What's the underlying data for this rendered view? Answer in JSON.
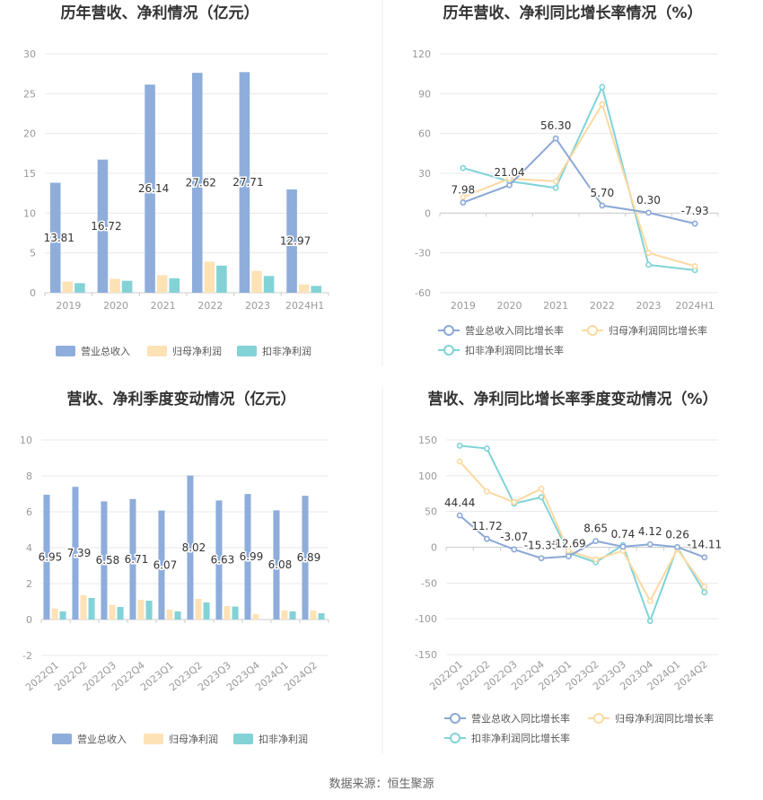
{
  "colors": {
    "revenue": "#8EADDB",
    "parent_profit": "#FDE2B6",
    "nonrecurring_profit": "#82D2D6",
    "grid": "#E8E8E8",
    "axis_text": "#999999",
    "label_text": "#333333"
  },
  "source": "数据来源：恒生聚源",
  "chart_data": [
    {
      "type": "bar",
      "title": "历年营收、净利情况（亿元）",
      "categories": [
        "2019",
        "2020",
        "2021",
        "2022",
        "2023",
        "2024H1"
      ],
      "series": [
        {
          "name": "营业总收入",
          "values": [
            13.81,
            16.72,
            26.14,
            27.62,
            27.71,
            12.97
          ],
          "labels": [
            "13.81",
            "16.72",
            "26.14",
            "27.62",
            "27.71",
            "12.97"
          ]
        },
        {
          "name": "归母净利润",
          "values": [
            1.4,
            1.75,
            2.2,
            3.9,
            2.75,
            1.05
          ]
        },
        {
          "name": "扣非净利润",
          "values": [
            1.2,
            1.5,
            1.8,
            3.4,
            2.1,
            0.85
          ]
        }
      ],
      "ylim": [
        0,
        30
      ],
      "yticks": [
        "0",
        "5",
        "10",
        "15",
        "20",
        "25",
        "30"
      ],
      "legend": "bottom"
    },
    {
      "type": "line",
      "title": "历年营收、净利同比增长率情况（%）",
      "categories": [
        "2019",
        "2020",
        "2021",
        "2022",
        "2023",
        "2024H1"
      ],
      "series": [
        {
          "name": "营业总收入同比增长率",
          "values": [
            7.98,
            21.04,
            56.3,
            5.7,
            0.3,
            -7.93
          ],
          "labels": [
            "7.98",
            "21.04",
            "56.30",
            "5.70",
            "0.30",
            "-7.93"
          ]
        },
        {
          "name": "归母净利润同比增长率",
          "values": [
            12,
            26,
            24,
            82,
            -30,
            -40
          ]
        },
        {
          "name": "扣非净利润同比增长率",
          "values": [
            34,
            24,
            19,
            95,
            -39,
            -43
          ]
        }
      ],
      "ylim": [
        -60,
        120
      ],
      "yticks": [
        "-60",
        "-30",
        "0",
        "30",
        "60",
        "90",
        "120"
      ],
      "legend": "bottom"
    },
    {
      "type": "bar",
      "title": "营收、净利季度变动情况（亿元）",
      "categories": [
        "2022Q1",
        "2022Q2",
        "2022Q3",
        "2022Q4",
        "2023Q1",
        "2023Q2",
        "2023Q3",
        "2023Q4",
        "2024Q1",
        "2024Q2"
      ],
      "series": [
        {
          "name": "营业总收入",
          "values": [
            6.95,
            7.39,
            6.58,
            6.71,
            6.07,
            8.02,
            6.63,
            6.99,
            6.08,
            6.89
          ],
          "labels": [
            "6.95",
            "7.39",
            "6.58",
            "6.71",
            "6.07",
            "8.02",
            "6.63",
            "6.99",
            "6.08",
            "6.89"
          ]
        },
        {
          "name": "归母净利润",
          "values": [
            0.62,
            1.35,
            0.82,
            1.1,
            0.55,
            1.15,
            0.75,
            0.3,
            0.5,
            0.5
          ]
        },
        {
          "name": "扣非净利润",
          "values": [
            0.45,
            1.2,
            0.7,
            1.05,
            0.45,
            0.95,
            0.72,
            0.0,
            0.45,
            0.35
          ]
        }
      ],
      "ylim": [
        -2,
        10
      ],
      "yticks": [
        "-2",
        "0",
        "2",
        "4",
        "6",
        "8",
        "10"
      ],
      "legend": "bottom"
    },
    {
      "type": "line",
      "title": "营收、净利同比增长率季度变动情况（%）",
      "categories": [
        "2022Q1",
        "2022Q2",
        "2022Q3",
        "2022Q4",
        "2023Q1",
        "2023Q2",
        "2023Q3",
        "2023Q4",
        "2024Q1",
        "2024Q2"
      ],
      "series": [
        {
          "name": "营业总收入同比增长率",
          "values": [
            44.44,
            11.72,
            -3.07,
            -15.33,
            -12.69,
            8.65,
            0.74,
            4.12,
            0.26,
            -14.11
          ],
          "labels": [
            "44.44",
            "11.72",
            "-3.07",
            "-15.33",
            "-12.69",
            "8.65",
            "0.74",
            "4.12",
            "0.26",
            "-14.11"
          ]
        },
        {
          "name": "归母净利润同比增长率",
          "values": [
            120,
            78,
            63,
            82,
            -5,
            -17,
            -5,
            -75,
            -3,
            -55
          ]
        },
        {
          "name": "扣非净利润同比增长率",
          "values": [
            142,
            138,
            61,
            70,
            -8,
            -21,
            3,
            -103,
            0,
            -63
          ]
        }
      ],
      "ylim": [
        -150,
        150
      ],
      "yticks": [
        "-150",
        "-100",
        "-50",
        "0",
        "50",
        "100",
        "150"
      ],
      "legend": "bottom"
    }
  ]
}
